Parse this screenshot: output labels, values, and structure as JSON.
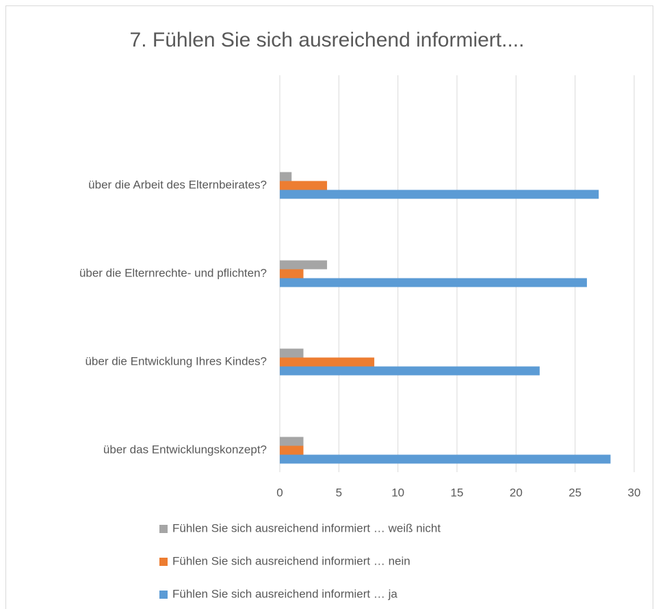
{
  "chart_data": {
    "type": "bar",
    "orientation": "horizontal",
    "title": "7. Fühlen Sie sich ausreichend informiert....",
    "categories": [
      "über die Arbeit des Elternbeirates?",
      "über die Elternrechte- und pflichten?",
      "über die Entwicklung Ihres Kindes?",
      "über das Entwicklungskonzept?"
    ],
    "series": [
      {
        "name": "Fühlen Sie sich ausreichend informiert … weiß nicht",
        "color": "#a5a5a5",
        "values": [
          1,
          4,
          2,
          2
        ]
      },
      {
        "name": "Fühlen Sie sich ausreichend informiert … nein",
        "color": "#ed7d31",
        "values": [
          4,
          2,
          8,
          2
        ]
      },
      {
        "name": "Fühlen Sie sich ausreichend informiert … ja",
        "color": "#5b9bd5",
        "values": [
          27,
          26,
          22,
          28
        ]
      }
    ],
    "xlim": [
      0,
      30
    ],
    "xticks": [
      0,
      5,
      10,
      15,
      20,
      25,
      30
    ],
    "grid": true,
    "legend": "bottom"
  }
}
